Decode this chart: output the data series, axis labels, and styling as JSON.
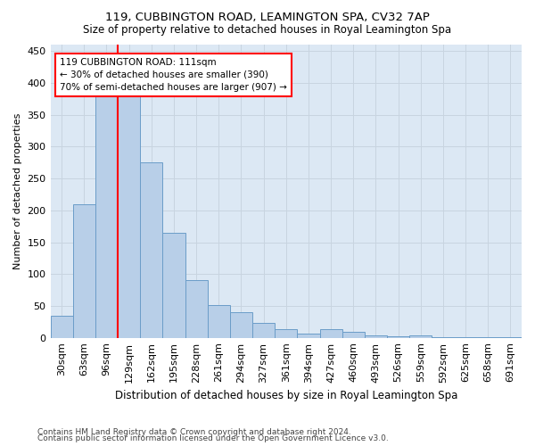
{
  "title1": "119, CUBBINGTON ROAD, LEAMINGTON SPA, CV32 7AP",
  "title2": "Size of property relative to detached houses in Royal Leamington Spa",
  "xlabel": "Distribution of detached houses by size in Royal Leamington Spa",
  "ylabel": "Number of detached properties",
  "footnote1": "Contains HM Land Registry data © Crown copyright and database right 2024.",
  "footnote2": "Contains public sector information licensed under the Open Government Licence v3.0.",
  "categories": [
    "30sqm",
    "63sqm",
    "96sqm",
    "129sqm",
    "162sqm",
    "195sqm",
    "228sqm",
    "261sqm",
    "294sqm",
    "327sqm",
    "361sqm",
    "394sqm",
    "427sqm",
    "460sqm",
    "493sqm",
    "526sqm",
    "559sqm",
    "592sqm",
    "625sqm",
    "658sqm",
    "691sqm"
  ],
  "values": [
    35,
    210,
    380,
    380,
    275,
    165,
    90,
    52,
    40,
    23,
    13,
    7,
    13,
    10,
    4,
    2,
    4,
    1,
    1,
    1,
    1
  ],
  "bar_color": "#b8cfe8",
  "bar_edge_color": "#6b9dc8",
  "grid_color": "#c8d4e0",
  "annotation_text": "119 CUBBINGTON ROAD: 111sqm\n← 30% of detached houses are smaller (390)\n70% of semi-detached houses are larger (907) →",
  "annotation_box_color": "white",
  "annotation_box_edge": "red",
  "vline_x_index": 2.5,
  "vline_color": "red",
  "ylim": [
    0,
    460
  ],
  "background_color": "#dce8f4",
  "fig_background": "#ffffff"
}
